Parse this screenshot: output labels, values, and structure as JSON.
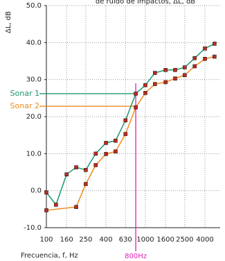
{
  "chart_data": {
    "type": "line",
    "title": "de ruido de impactos, ΔL, dB",
    "ylabel": "ΔL, dB",
    "xlabel": "Frecuencia, f, Hz",
    "xscale": "log",
    "xlim": [
      100,
      5700
    ],
    "xticks": [
      100,
      160,
      250,
      400,
      630,
      1000,
      1600,
      2500,
      4000
    ],
    "ylim": [
      -10,
      50
    ],
    "yticks": [
      {
        "value": -10,
        "label": "-10.0"
      },
      {
        "value": 0,
        "label": "0.0"
      },
      {
        "value": 10,
        "label": "10.0"
      },
      {
        "value": 20,
        "label": "20.0"
      },
      {
        "value": 30,
        "label": "30.0"
      },
      {
        "value": 40,
        "label": "40.0"
      },
      {
        "value": 50,
        "label": "50.0"
      }
    ],
    "grid": true,
    "marker_color": "#c0281e",
    "series": [
      {
        "color": "#1a9a6a",
        "x": [
          100,
          125,
          160,
          200,
          250,
          315,
          400,
          500,
          630,
          800,
          1000,
          1250,
          1600,
          2000,
          2500,
          3150,
          4000,
          5000
        ],
        "values": [
          -0.5,
          -3.8,
          4.4,
          6.3,
          5.6,
          10,
          12.9,
          13.5,
          19,
          26.2,
          28.5,
          31.8,
          32.6,
          32.6,
          33.3,
          35.8,
          38.4,
          39.7
        ]
      },
      {
        "color": "#f08a1c",
        "x": [
          100,
          200,
          250,
          315,
          400,
          500,
          630,
          800,
          1000,
          1250,
          1600,
          2000,
          2500,
          3150,
          4000,
          5000
        ],
        "values": [
          -5.3,
          -4.4,
          1.8,
          6.9,
          9.9,
          10.6,
          15.3,
          22.5,
          26.4,
          28.8,
          29.3,
          30.3,
          31.2,
          33.6,
          35.6,
          36.2
        ]
      }
    ],
    "reference_lines": [
      {
        "label": "Sonar 1",
        "value": 26.2,
        "color": "#1a9a6a"
      },
      {
        "label": "Sonar 2",
        "value": 22.8,
        "color": "#f08a1c"
      }
    ],
    "marker_line": {
      "label": "800Hz",
      "x": 800,
      "color": "#e020b0"
    }
  }
}
